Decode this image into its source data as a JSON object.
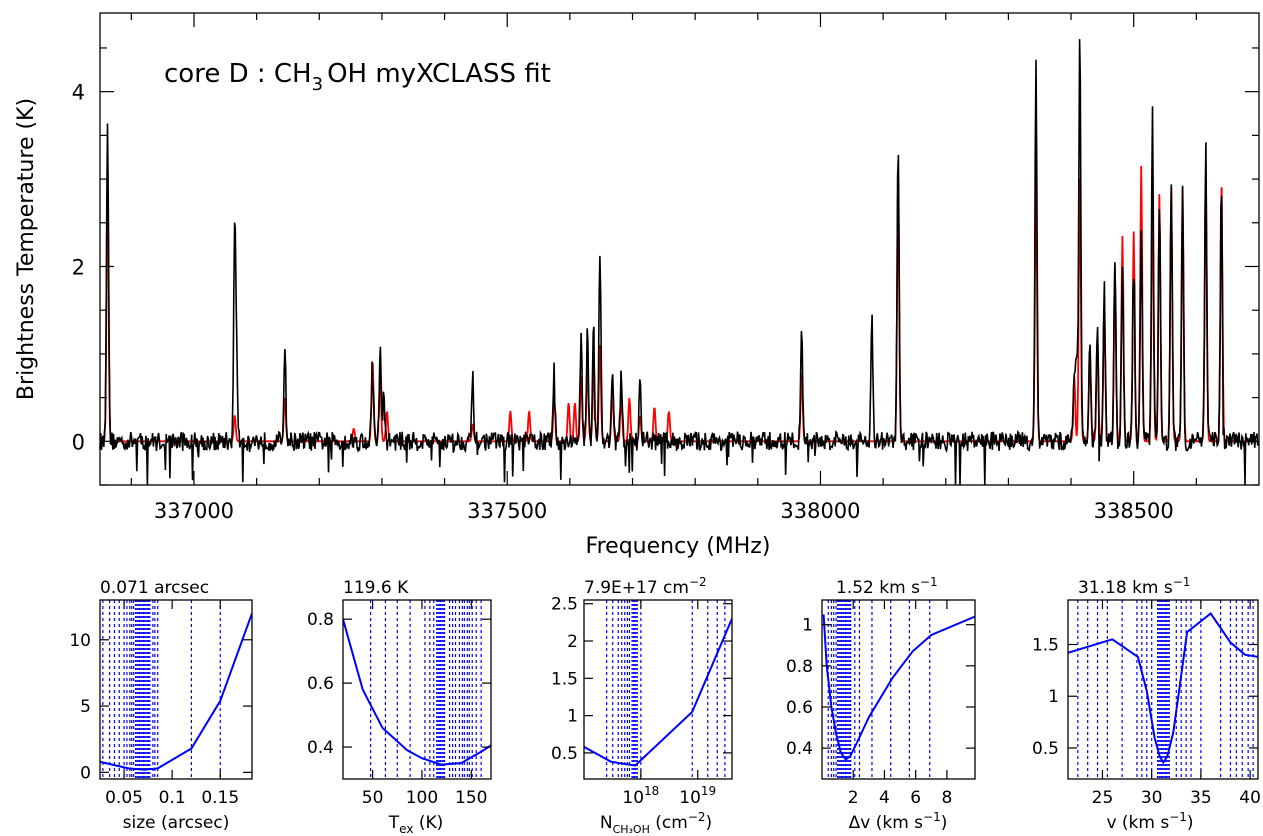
{
  "main": {
    "title_prefix": "core D : CH",
    "title_sub": "3",
    "title_suffix": "OH myXCLASS fit",
    "ylabel": "Brightness Temperature (K)",
    "xlabel": "Frequency (MHz)"
  },
  "panels": [
    {
      "title": "0.071 arcsec",
      "xlabel": "size (arcsec)"
    },
    {
      "title": "119.6 K",
      "xlabel_main": "T",
      "xlabel_sub": "ex",
      "xlabel_rest": " (K)"
    },
    {
      "title": "7.9E+17 cm",
      "title_sup": "−2",
      "xlabel_main": "N",
      "xlabel_sub": "CH₃OH",
      "xlabel_rest": " (cm",
      "xlabel_sup": "−2",
      "xlabel_end": ")"
    },
    {
      "title": "1.52 km s",
      "title_sup": "−1",
      "xlabel": "Δv (km s",
      "xlabel_sup": "−1",
      "xlabel_end": ")"
    },
    {
      "title": "31.18 km s",
      "title_sup": "−1",
      "xlabel": "v (km s",
      "xlabel_sup": "−1",
      "xlabel_end": ")"
    }
  ],
  "colors": {
    "observed": "#000000",
    "model": "#ff0000",
    "chi2": "#0000ff"
  },
  "chart_data": [
    {
      "type": "line",
      "title": "core D : CH3OH myXCLASS fit",
      "xlabel": "Frequency (MHz)",
      "ylabel": "Brightness Temperature (K)",
      "xlim": [
        336850,
        338700
      ],
      "ylim": [
        -0.5,
        4.9
      ],
      "xticks": [
        337000,
        337500,
        338000,
        338500
      ],
      "yticks": [
        0,
        2,
        4
      ],
      "grid": false,
      "series": [
        {
          "role": "observed spectrum",
          "peaks": [
            [
              336862,
              3.7
            ],
            [
              337065,
              2.35
            ],
            [
              337068,
              0.9
            ],
            [
              337145,
              1.08
            ],
            [
              337285,
              0.9
            ],
            [
              337297,
              1.08
            ],
            [
              337303,
              0.5
            ],
            [
              337445,
              0.7
            ],
            [
              337575,
              0.8
            ],
            [
              337618,
              1.15
            ],
            [
              337628,
              1.25
            ],
            [
              337638,
              1.45
            ],
            [
              337648,
              2.2
            ],
            [
              337668,
              0.85
            ],
            [
              337682,
              0.75
            ],
            [
              337712,
              0.7
            ],
            [
              337970,
              1.3
            ],
            [
              338082,
              1.43
            ],
            [
              338124,
              3.38
            ],
            [
              338344,
              4.32
            ],
            [
              338405,
              0.7
            ],
            [
              338409,
              1.0
            ],
            [
              338414,
              4.65
            ],
            [
              338430,
              1.05
            ],
            [
              338442,
              1.25
            ],
            [
              338453,
              1.75
            ],
            [
              338470,
              2.0
            ],
            [
              338482,
              2.1
            ],
            [
              338500,
              2.25
            ],
            [
              338512,
              2.4
            ],
            [
              338530,
              3.8
            ],
            [
              338541,
              2.95
            ],
            [
              338560,
              2.95
            ],
            [
              338578,
              2.85
            ],
            [
              338615,
              3.35
            ],
            [
              338640,
              2.95
            ]
          ]
        },
        {
          "role": "myXCLASS model",
          "peaks": [
            [
              336862,
              3.1
            ],
            [
              337065,
              0.3
            ],
            [
              337145,
              0.5
            ],
            [
              337255,
              0.15
            ],
            [
              337285,
              0.95
            ],
            [
              337297,
              0.75
            ],
            [
              337308,
              0.35
            ],
            [
              337445,
              0.2
            ],
            [
              337505,
              0.35
            ],
            [
              337535,
              0.35
            ],
            [
              337575,
              0.5
            ],
            [
              337598,
              0.45
            ],
            [
              337608,
              0.45
            ],
            [
              337618,
              0.75
            ],
            [
              337628,
              0.85
            ],
            [
              337638,
              1.0
            ],
            [
              337648,
              1.1
            ],
            [
              337668,
              0.6
            ],
            [
              337682,
              0.5
            ],
            [
              337695,
              0.5
            ],
            [
              337712,
              0.3
            ],
            [
              337735,
              0.4
            ],
            [
              337758,
              0.35
            ],
            [
              337970,
              0.8
            ],
            [
              338124,
              3.1
            ],
            [
              338344,
              3.1
            ],
            [
              338405,
              0.75
            ],
            [
              338414,
              3.1
            ],
            [
              338430,
              1.0
            ],
            [
              338442,
              1.15
            ],
            [
              338453,
              1.55
            ],
            [
              338470,
              2.0
            ],
            [
              338482,
              2.35
            ],
            [
              338500,
              2.4
            ],
            [
              338512,
              3.15
            ],
            [
              338530,
              2.9
            ],
            [
              338541,
              2.85
            ],
            [
              338560,
              2.9
            ],
            [
              338578,
              2.9
            ],
            [
              338615,
              3.1
            ],
            [
              338640,
              3.0
            ]
          ]
        }
      ]
    },
    {
      "type": "line",
      "title": "0.071 arcsec",
      "xlabel": "size (arcsec)",
      "xlim": [
        0.025,
        0.183
      ],
      "ylim": [
        -0.5,
        13
      ],
      "xticks": [
        0.05,
        0.1,
        0.15
      ],
      "yticks": [
        0,
        5,
        10
      ],
      "series": [
        {
          "x": [
            0.025,
            0.04,
            0.055,
            0.071,
            0.085,
            0.12,
            0.15,
            0.183
          ],
          "y": [
            0.8,
            0.55,
            0.3,
            0.2,
            0.3,
            1.8,
            5.4,
            12.0
          ]
        }
      ],
      "vlines": {
        "dense_range": [
          0.062,
          0.078
        ],
        "sparse": [
          0.028,
          0.035,
          0.04,
          0.045,
          0.05,
          0.053,
          0.056,
          0.058,
          0.06,
          0.08,
          0.082,
          0.085,
          0.12,
          0.15
        ]
      }
    },
    {
      "type": "line",
      "title": "119.6 K",
      "xlabel": "Tex (K)",
      "xlim": [
        20,
        170
      ],
      "ylim": [
        0.3,
        0.86
      ],
      "xticks": [
        50,
        100,
        150
      ],
      "yticks": [
        0.4,
        0.6,
        0.8
      ],
      "series": [
        {
          "x": [
            20,
            40,
            60,
            85,
            100,
            119.6,
            140,
            160,
            170
          ],
          "y": [
            0.8,
            0.58,
            0.46,
            0.39,
            0.365,
            0.345,
            0.35,
            0.385,
            0.405
          ]
        }
      ],
      "vlines": {
        "dense_range": [
          115,
          124
        ],
        "sparse": [
          48,
          63,
          75,
          88,
          103,
          108,
          112,
          128,
          131,
          134,
          138,
          141,
          143,
          146,
          148,
          151,
          155,
          160
        ]
      }
    },
    {
      "type": "line",
      "title": "7.9E+17 cm-2",
      "xlabel": "NCH3OH (cm-2)",
      "log_x": true,
      "xlim": [
        1e+17,
        4e+19
      ],
      "ylim": [
        0.15,
        2.55
      ],
      "xticks": [
        "10^18",
        "10^19"
      ],
      "yticks": [
        0.5,
        1,
        1.5,
        2,
        2.5
      ],
      "series": [
        {
          "x": [
            1e+17,
            3e+17,
            7.9e+17,
            8e+18,
            4e+19
          ],
          "y": [
            0.58,
            0.38,
            0.33,
            1.05,
            2.3
          ]
        }
      ],
      "vlines": {
        "dense_range": [
          7e+17,
          9e+17
        ],
        "sparse": [
          2.5e+17,
          3.2e+17,
          4e+17,
          4.6e+17,
          5.2e+17,
          5.8e+17,
          6.3e+17,
          1e+18,
          8e+18,
          1.5e+19,
          2.2e+19,
          3e+19
        ]
      }
    },
    {
      "type": "line",
      "title": "1.52 km s-1",
      "xlabel": "Δv (km s-1)",
      "xlim": [
        0,
        9.8
      ],
      "ylim": [
        0.25,
        1.12
      ],
      "xticks": [
        2,
        4,
        6,
        8
      ],
      "yticks": [
        0.4,
        0.6,
        0.8,
        1
      ],
      "series": [
        {
          "x": [
            0.1,
            0.3,
            0.6,
            0.9,
            1.2,
            1.52,
            1.8,
            2.2,
            3.0,
            4.5,
            5.8,
            7.0,
            9.8
          ],
          "y": [
            1.05,
            0.8,
            0.6,
            0.47,
            0.38,
            0.345,
            0.36,
            0.42,
            0.55,
            0.74,
            0.87,
            0.95,
            1.04
          ]
        }
      ],
      "vlines": {
        "dense_range": [
          1.0,
          1.9
        ],
        "sparse": [
          0.4,
          0.6,
          0.75,
          0.9,
          2.1,
          2.4,
          3.2,
          4.4,
          5.6,
          6.9
        ]
      }
    },
    {
      "type": "line",
      "title": "31.18 km s-1",
      "xlabel": "v (km s-1)",
      "xlim": [
        21.5,
        40.8
      ],
      "ylim": [
        0.2,
        1.93
      ],
      "xticks": [
        25,
        30,
        35,
        40
      ],
      "yticks": [
        0.5,
        1,
        1.5
      ],
      "series": [
        {
          "x": [
            21.5,
            26,
            28.6,
            29.5,
            30.3,
            30.8,
            31.18,
            31.6,
            32.2,
            33,
            33.6,
            36,
            38,
            39.5,
            40.8
          ],
          "y": [
            1.42,
            1.55,
            1.38,
            1.05,
            0.6,
            0.42,
            0.36,
            0.42,
            0.65,
            1.2,
            1.62,
            1.8,
            1.52,
            1.4,
            1.38
          ]
        }
      ],
      "vlines": {
        "dense_range": [
          30.6,
          31.8
        ],
        "sparse": [
          22.5,
          23.5,
          24.5,
          25.5,
          27,
          28.5,
          29,
          29.5,
          30,
          32.5,
          33,
          33.5,
          34,
          35,
          37,
          38,
          38.6,
          39.2,
          39.8,
          40.3
        ]
      }
    }
  ]
}
